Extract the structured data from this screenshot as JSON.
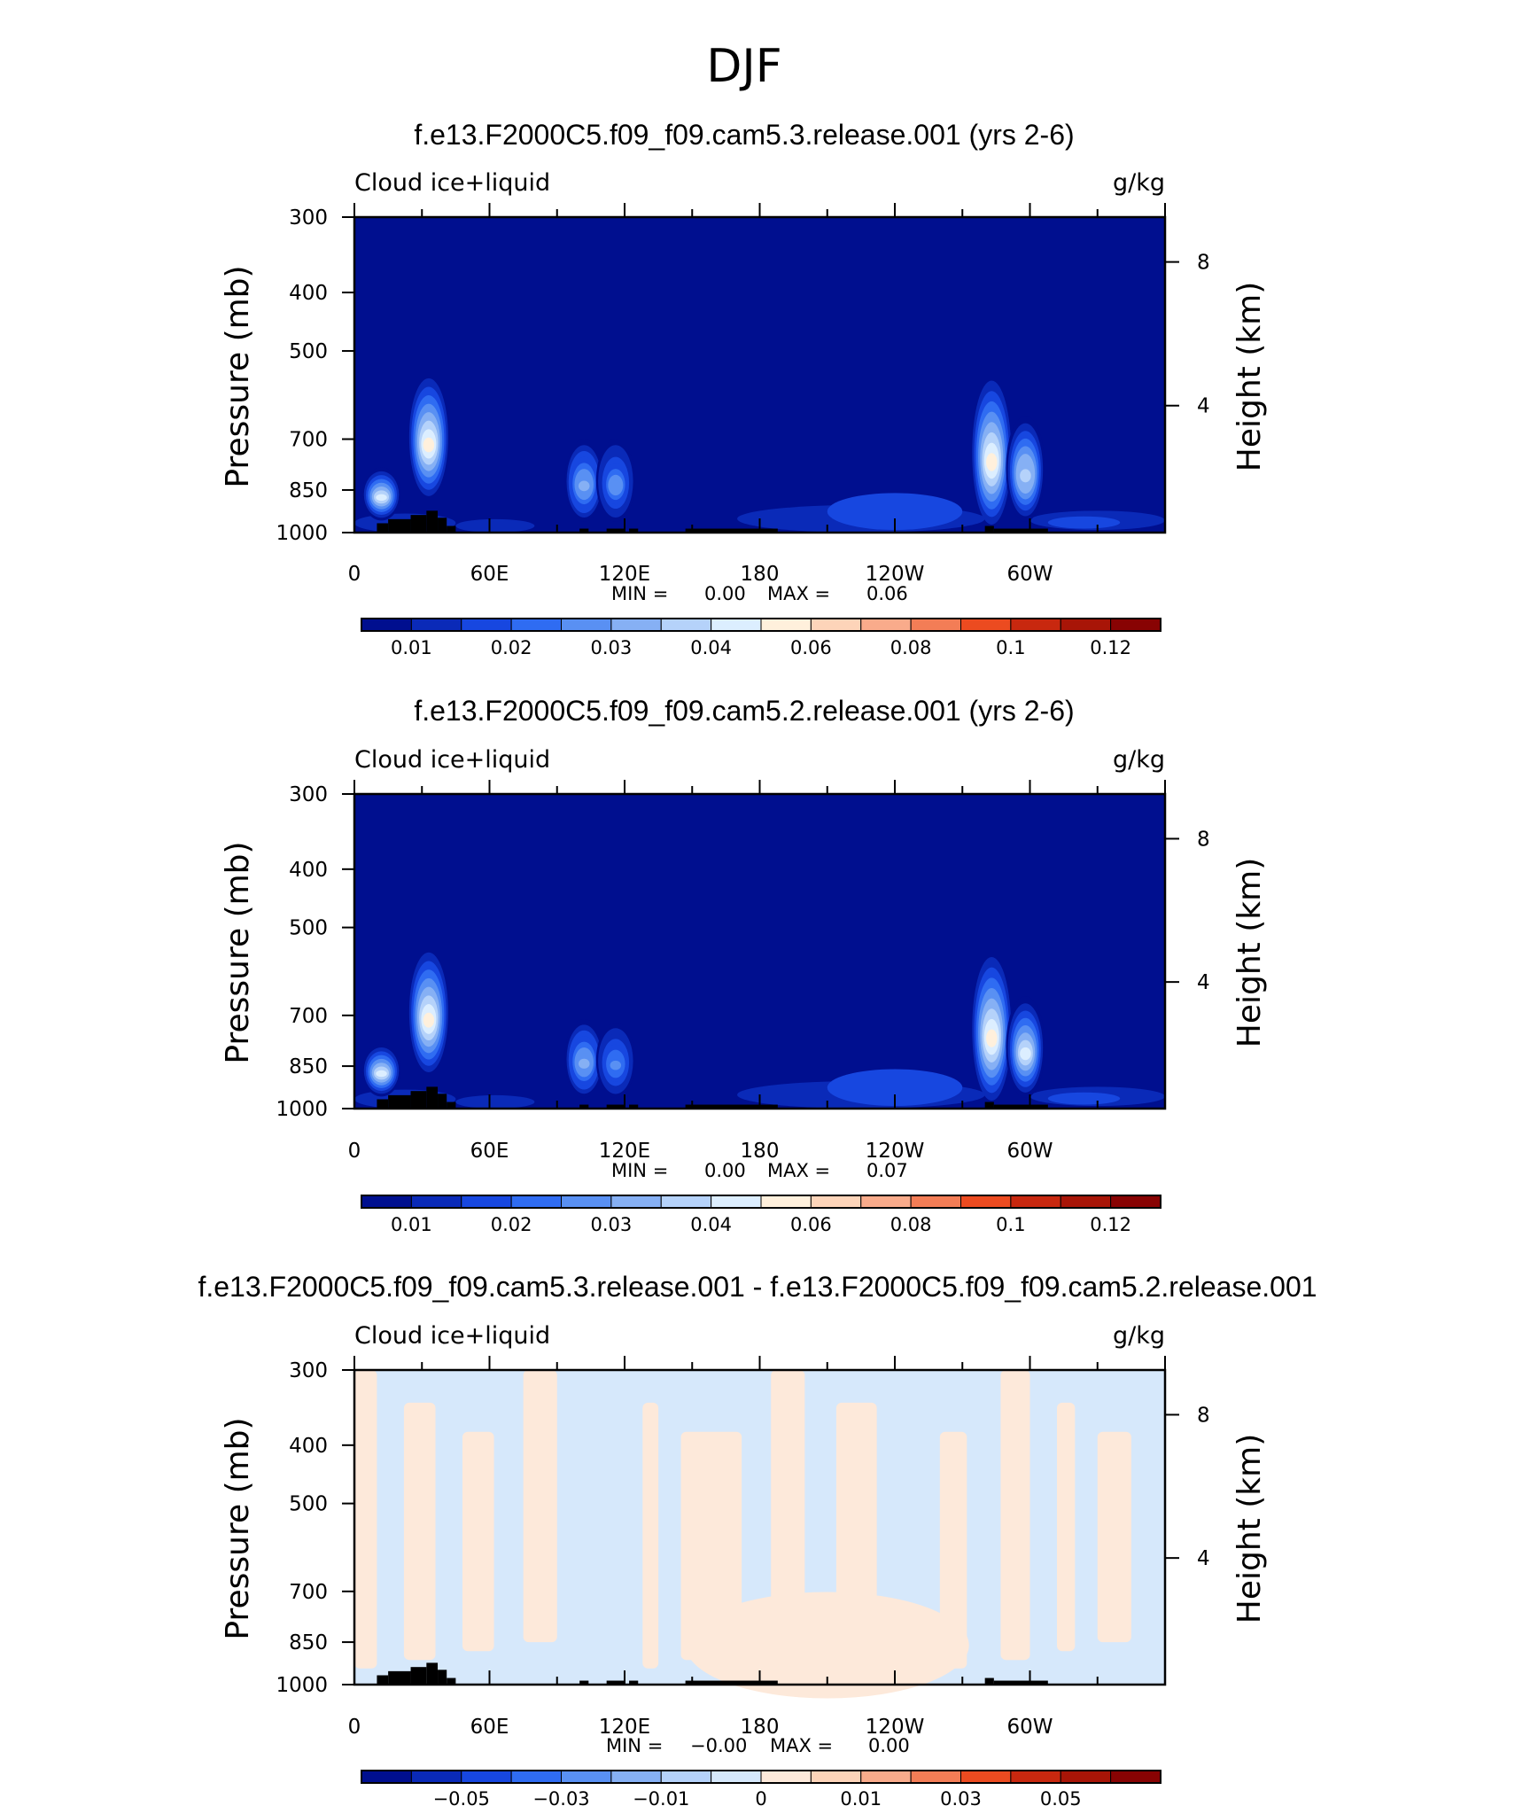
{
  "figure": {
    "title": "DJF"
  },
  "palette": {
    "seq": [
      "#000f8f",
      "#0a2ab8",
      "#1747e0",
      "#2f6cf2",
      "#5990f3",
      "#86b0f4",
      "#b5d2fa",
      "#dceeff",
      "#fff0dc",
      "#fdd4b9",
      "#f9ab8b",
      "#f37d56",
      "#ec4b20",
      "#c8280f",
      "#a81507",
      "#880303"
    ],
    "diff": [
      "#000f8f",
      "#0a2ab8",
      "#1747e0",
      "#2f6cf2",
      "#5990f3",
      "#86b0f4",
      "#b5d2fa",
      "#d6e8fb",
      "#fde9da",
      "#fdd4b9",
      "#f9ab8b",
      "#f37d56",
      "#ec4b20",
      "#c8280f",
      "#a81507",
      "#880303"
    ],
    "background": "#ffffff",
    "terrain": "#000000"
  },
  "chart_data": [
    {
      "type": "heatmap",
      "panel": "panel-1",
      "title": "f.e13.F2000C5.f09_f09.cam5.3.release.001 (yrs 2-6)",
      "left_label": "Cloud ice+liquid",
      "right_label": "g/kg",
      "ylabel": "Pressure (mb)",
      "y2label": "Height (km)",
      "xticks": [
        "0",
        "60E",
        "120E",
        "180",
        "120W",
        "60W"
      ],
      "yticks": [
        "300",
        "400",
        "500",
        "700",
        "850",
        "1000"
      ],
      "yticks_right": [
        "8",
        "4"
      ],
      "min_label": "MIN =",
      "min_value": "0.00",
      "max_label": "MAX =",
      "max_value": "0.06",
      "colorbar_labels": [
        "0.01",
        "0.02",
        "0.03",
        "0.04",
        "0.06",
        "0.08",
        "0.1",
        "0.12"
      ],
      "ylim": [
        300,
        1000
      ],
      "blobs": [
        {
          "lon": 12,
          "p_top": 780,
          "p_bot": 955,
          "peak": 0.055
        },
        {
          "lon": 33,
          "p_top": 555,
          "p_bot": 870,
          "peak": 0.06
        },
        {
          "lon": 102,
          "p_top": 700,
          "p_bot": 960,
          "peak": 0.04
        },
        {
          "lon": 116,
          "p_top": 700,
          "p_bot": 960,
          "peak": 0.035
        },
        {
          "lon": 283,
          "p_top": 560,
          "p_bot": 970,
          "peak": 0.06
        },
        {
          "lon": 298,
          "p_top": 640,
          "p_bot": 960,
          "peak": 0.05
        }
      ]
    },
    {
      "type": "heatmap",
      "panel": "panel-2",
      "title": "f.e13.F2000C5.f09_f09.cam5.2.release.001 (yrs 2-6)",
      "left_label": "Cloud ice+liquid",
      "right_label": "g/kg",
      "ylabel": "Pressure (mb)",
      "y2label": "Height (km)",
      "xticks": [
        "0",
        "60E",
        "120E",
        "180",
        "120W",
        "60W"
      ],
      "yticks": [
        "300",
        "400",
        "500",
        "700",
        "850",
        "1000"
      ],
      "yticks_right": [
        "8",
        "4"
      ],
      "min_label": "MIN =",
      "min_value": "0.00",
      "max_label": "MAX =",
      "max_value": "0.07",
      "colorbar_labels": [
        "0.01",
        "0.02",
        "0.03",
        "0.04",
        "0.06",
        "0.08",
        "0.1",
        "0.12"
      ],
      "ylim": [
        300,
        1000
      ],
      "blobs": [
        {
          "lon": 12,
          "p_top": 780,
          "p_bot": 955,
          "peak": 0.055
        },
        {
          "lon": 33,
          "p_top": 550,
          "p_bot": 870,
          "peak": 0.065
        },
        {
          "lon": 102,
          "p_top": 710,
          "p_bot": 960,
          "peak": 0.04
        },
        {
          "lon": 116,
          "p_top": 720,
          "p_bot": 960,
          "peak": 0.03
        },
        {
          "lon": 283,
          "p_top": 560,
          "p_bot": 970,
          "peak": 0.065
        },
        {
          "lon": 298,
          "p_top": 650,
          "p_bot": 960,
          "peak": 0.055
        }
      ]
    },
    {
      "type": "heatmap",
      "panel": "panel-3",
      "title": "f.e13.F2000C5.f09_f09.cam5.3.release.001 - f.e13.F2000C5.f09_f09.cam5.2.release.001",
      "left_label": "Cloud ice+liquid",
      "right_label": "g/kg",
      "ylabel": "Pressure (mb)",
      "y2label": "Height (km)",
      "xticks": [
        "0",
        "60E",
        "120E",
        "180",
        "120W",
        "60W"
      ],
      "yticks": [
        "300",
        "400",
        "500",
        "700",
        "850",
        "1000"
      ],
      "yticks_right": [
        "8",
        "4"
      ],
      "min_label": "MIN =",
      "min_value": "−0.00",
      "max_label": "MAX =",
      "max_value": "0.00",
      "colorbar_labels": [
        "−0.05",
        "−0.03",
        "−0.01",
        "0",
        "0.01",
        "0.03",
        "0.05"
      ],
      "ylim": [
        300,
        1000
      ],
      "positive_lons": [
        [
          0,
          10
        ],
        [
          22,
          36
        ],
        [
          48,
          62
        ],
        [
          75,
          90
        ],
        [
          128,
          135
        ],
        [
          145,
          172
        ],
        [
          185,
          200
        ],
        [
          214,
          232
        ],
        [
          260,
          272
        ],
        [
          287,
          300
        ],
        [
          312,
          320
        ],
        [
          330,
          345
        ]
      ]
    }
  ]
}
